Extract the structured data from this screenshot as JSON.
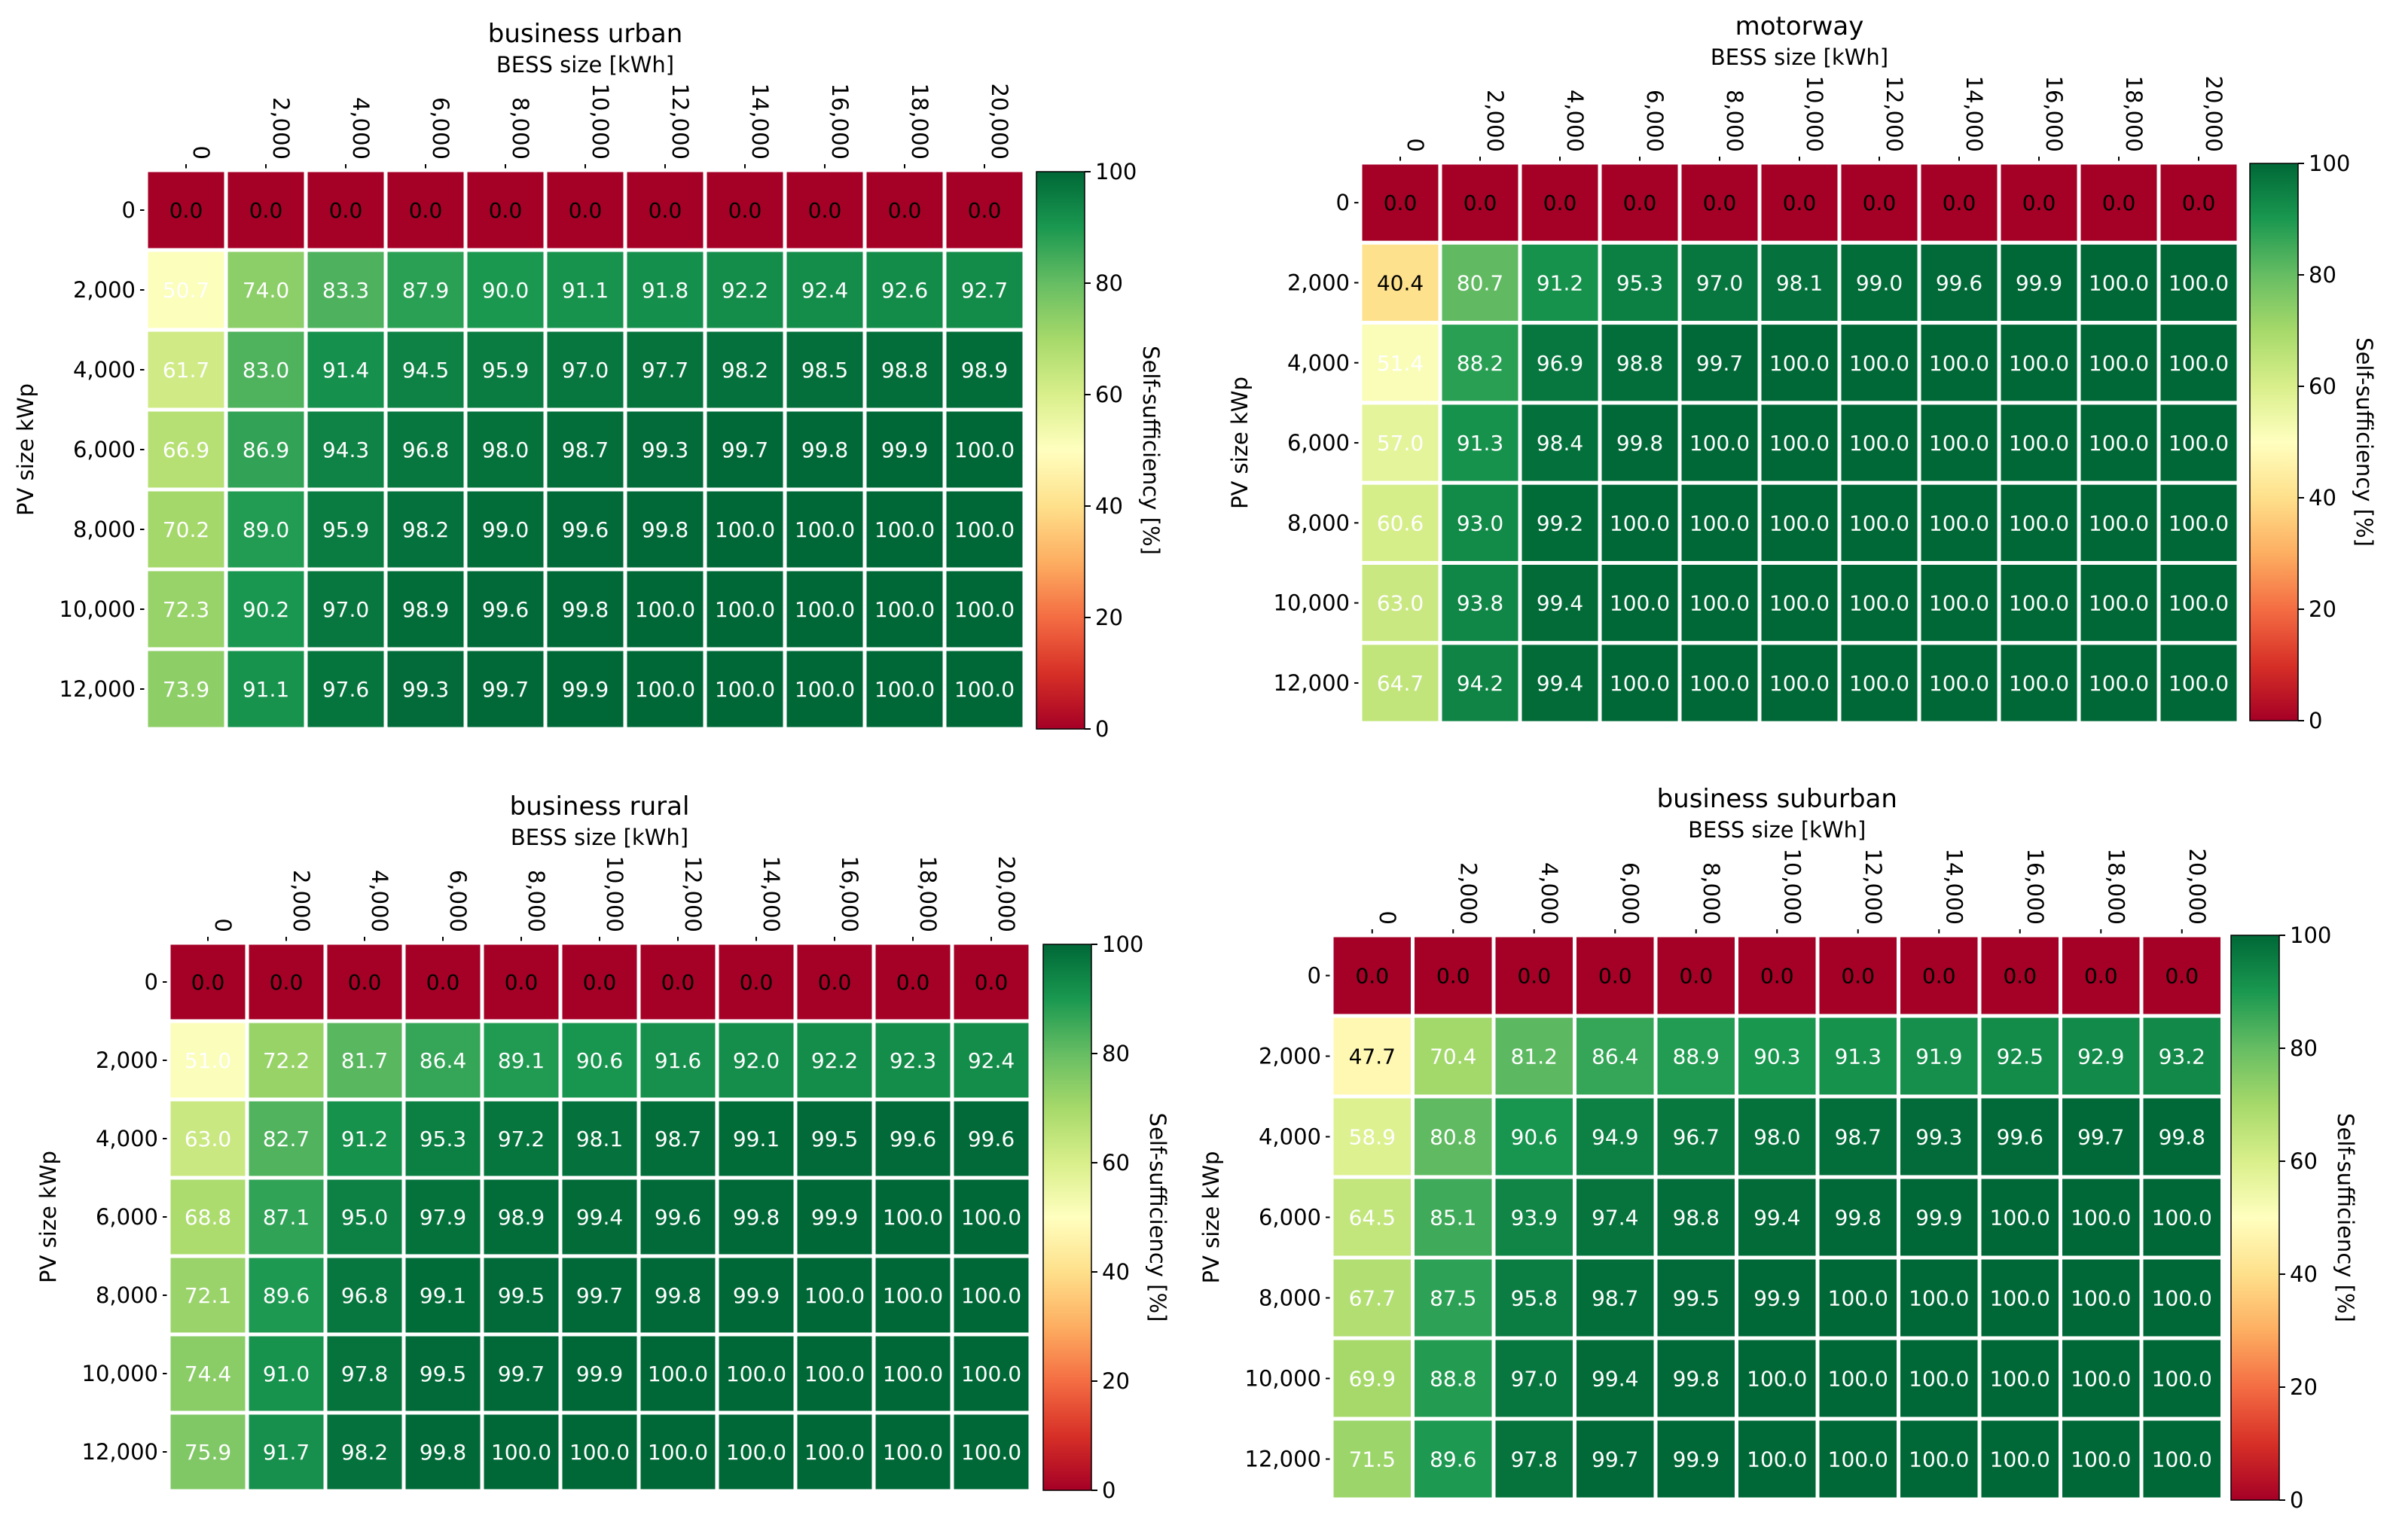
{
  "chart_data": [
    {
      "type": "heatmap",
      "title": "business urban",
      "xlabel": "BESS size [kWh]",
      "ylabel": "PV size kWp",
      "colorbar_label": "Self-sufficiency [%]",
      "colorbar_ticks": [
        "0",
        "20",
        "40",
        "60",
        "80",
        "100"
      ],
      "value_range": [
        0,
        100
      ],
      "colormap": "RdYlGn",
      "x_categories": [
        "0",
        "2,000",
        "4,000",
        "6,000",
        "8,000",
        "10,000",
        "12,000",
        "14,000",
        "16,000",
        "18,000",
        "20,000"
      ],
      "y_categories": [
        "0",
        "2,000",
        "4,000",
        "6,000",
        "8,000",
        "10,000",
        "12,000"
      ],
      "values": [
        [
          0.0,
          0.0,
          0.0,
          0.0,
          0.0,
          0.0,
          0.0,
          0.0,
          0.0,
          0.0,
          0.0
        ],
        [
          50.7,
          74.0,
          83.3,
          87.9,
          90.0,
          91.1,
          91.8,
          92.2,
          92.4,
          92.6,
          92.7
        ],
        [
          61.7,
          83.0,
          91.4,
          94.5,
          95.9,
          97.0,
          97.7,
          98.2,
          98.5,
          98.8,
          98.9
        ],
        [
          66.9,
          86.9,
          94.3,
          96.8,
          98.0,
          98.7,
          99.3,
          99.7,
          99.8,
          99.9,
          100.0
        ],
        [
          70.2,
          89.0,
          95.9,
          98.2,
          99.0,
          99.6,
          99.8,
          100.0,
          100.0,
          100.0,
          100.0
        ],
        [
          72.3,
          90.2,
          97.0,
          98.9,
          99.6,
          99.8,
          100.0,
          100.0,
          100.0,
          100.0,
          100.0
        ],
        [
          73.9,
          91.1,
          97.6,
          99.3,
          99.7,
          99.9,
          100.0,
          100.0,
          100.0,
          100.0,
          100.0
        ]
      ]
    },
    {
      "type": "heatmap",
      "title": "motorway",
      "xlabel": "BESS size [kWh]",
      "ylabel": "PV size kWp",
      "colorbar_label": "Self-sufficiency [%]",
      "colorbar_ticks": [
        "0",
        "20",
        "40",
        "60",
        "80",
        "100"
      ],
      "value_range": [
        0,
        100
      ],
      "colormap": "RdYlGn",
      "x_categories": [
        "0",
        "2,000",
        "4,000",
        "6,000",
        "8,000",
        "10,000",
        "12,000",
        "14,000",
        "16,000",
        "18,000",
        "20,000"
      ],
      "y_categories": [
        "0",
        "2,000",
        "4,000",
        "6,000",
        "8,000",
        "10,000",
        "12,000"
      ],
      "values": [
        [
          0.0,
          0.0,
          0.0,
          0.0,
          0.0,
          0.0,
          0.0,
          0.0,
          0.0,
          0.0,
          0.0
        ],
        [
          40.4,
          80.7,
          91.2,
          95.3,
          97.0,
          98.1,
          99.0,
          99.6,
          99.9,
          100.0,
          100.0
        ],
        [
          51.4,
          88.2,
          96.9,
          98.8,
          99.7,
          100.0,
          100.0,
          100.0,
          100.0,
          100.0,
          100.0
        ],
        [
          57.0,
          91.3,
          98.4,
          99.8,
          100.0,
          100.0,
          100.0,
          100.0,
          100.0,
          100.0,
          100.0
        ],
        [
          60.6,
          93.0,
          99.2,
          100.0,
          100.0,
          100.0,
          100.0,
          100.0,
          100.0,
          100.0,
          100.0
        ],
        [
          63.0,
          93.8,
          99.4,
          100.0,
          100.0,
          100.0,
          100.0,
          100.0,
          100.0,
          100.0,
          100.0
        ],
        [
          64.7,
          94.2,
          99.4,
          100.0,
          100.0,
          100.0,
          100.0,
          100.0,
          100.0,
          100.0,
          100.0
        ]
      ]
    },
    {
      "type": "heatmap",
      "title": "business rural",
      "xlabel": "BESS size [kWh]",
      "ylabel": "PV size kWp",
      "colorbar_label": "Self-sufficiency [%]",
      "colorbar_ticks": [
        "0",
        "20",
        "40",
        "60",
        "80",
        "100"
      ],
      "value_range": [
        0,
        100
      ],
      "colormap": "RdYlGn",
      "x_categories": [
        "0",
        "2,000",
        "4,000",
        "6,000",
        "8,000",
        "10,000",
        "12,000",
        "14,000",
        "16,000",
        "18,000",
        "20,000"
      ],
      "y_categories": [
        "0",
        "2,000",
        "4,000",
        "6,000",
        "8,000",
        "10,000",
        "12,000"
      ],
      "values": [
        [
          0.0,
          0.0,
          0.0,
          0.0,
          0.0,
          0.0,
          0.0,
          0.0,
          0.0,
          0.0,
          0.0
        ],
        [
          51.0,
          72.2,
          81.7,
          86.4,
          89.1,
          90.6,
          91.6,
          92.0,
          92.2,
          92.3,
          92.4
        ],
        [
          63.0,
          82.7,
          91.2,
          95.3,
          97.2,
          98.1,
          98.7,
          99.1,
          99.5,
          99.6,
          99.6
        ],
        [
          68.8,
          87.1,
          95.0,
          97.9,
          98.9,
          99.4,
          99.6,
          99.8,
          99.9,
          100.0,
          100.0
        ],
        [
          72.1,
          89.6,
          96.8,
          99.1,
          99.5,
          99.7,
          99.8,
          99.9,
          100.0,
          100.0,
          100.0
        ],
        [
          74.4,
          91.0,
          97.8,
          99.5,
          99.7,
          99.9,
          100.0,
          100.0,
          100.0,
          100.0,
          100.0
        ],
        [
          75.9,
          91.7,
          98.2,
          99.8,
          100.0,
          100.0,
          100.0,
          100.0,
          100.0,
          100.0,
          100.0
        ]
      ]
    },
    {
      "type": "heatmap",
      "title": "business suburban",
      "xlabel": "BESS size [kWh]",
      "ylabel": "PV size kWp",
      "colorbar_label": "Self-sufficiency [%]",
      "colorbar_ticks": [
        "0",
        "20",
        "40",
        "60",
        "80",
        "100"
      ],
      "value_range": [
        0,
        100
      ],
      "colormap": "RdYlGn",
      "x_categories": [
        "0",
        "2,000",
        "4,000",
        "6,000",
        "8,000",
        "10,000",
        "12,000",
        "14,000",
        "16,000",
        "18,000",
        "20,000"
      ],
      "y_categories": [
        "0",
        "2,000",
        "4,000",
        "6,000",
        "8,000",
        "10,000",
        "12,000"
      ],
      "values": [
        [
          0.0,
          0.0,
          0.0,
          0.0,
          0.0,
          0.0,
          0.0,
          0.0,
          0.0,
          0.0,
          0.0
        ],
        [
          47.7,
          70.4,
          81.2,
          86.4,
          88.9,
          90.3,
          91.3,
          91.9,
          92.5,
          92.9,
          93.2
        ],
        [
          58.9,
          80.8,
          90.6,
          94.9,
          96.7,
          98.0,
          98.7,
          99.3,
          99.6,
          99.7,
          99.8
        ],
        [
          64.5,
          85.1,
          93.9,
          97.4,
          98.8,
          99.4,
          99.8,
          99.9,
          100.0,
          100.0,
          100.0
        ],
        [
          67.7,
          87.5,
          95.8,
          98.7,
          99.5,
          99.9,
          100.0,
          100.0,
          100.0,
          100.0,
          100.0
        ],
        [
          69.9,
          88.8,
          97.0,
          99.4,
          99.8,
          100.0,
          100.0,
          100.0,
          100.0,
          100.0,
          100.0
        ],
        [
          71.5,
          89.6,
          97.8,
          99.7,
          99.9,
          100.0,
          100.0,
          100.0,
          100.0,
          100.0,
          100.0
        ]
      ]
    }
  ]
}
